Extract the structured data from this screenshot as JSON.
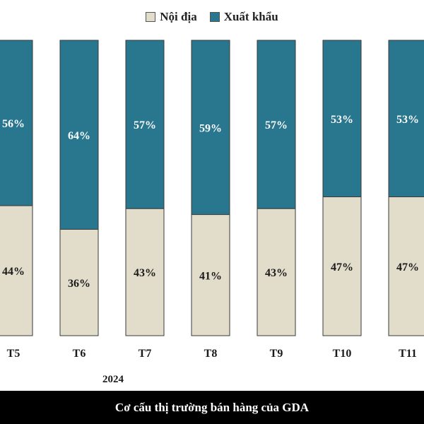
{
  "legend": {
    "domestic_label": "Nội địa",
    "export_label": "Xuất khẩu"
  },
  "colors": {
    "domestic": "#e2ddca",
    "export": "#29768f",
    "bar_border": "#3a3a3a",
    "caption_bg": "#000000"
  },
  "chart_data": {
    "type": "bar",
    "stacked": true,
    "categories": [
      "T5",
      "T6",
      "T7",
      "T8",
      "T9",
      "T10",
      "T11"
    ],
    "group_label": "2024",
    "series": [
      {
        "name": "Nội địa",
        "values": [
          44,
          36,
          43,
          41,
          43,
          47,
          47
        ]
      },
      {
        "name": "Xuất khẩu",
        "values": [
          56,
          64,
          57,
          59,
          57,
          53,
          53
        ]
      }
    ],
    "data_labels": {
      "Nội địa": [
        "44%",
        "36%",
        "43%",
        "41%",
        "43%",
        "47%",
        "47%"
      ],
      "Xuất khẩu": [
        "56%",
        "64%",
        "57%",
        "59%",
        "57%",
        "53%",
        "53%"
      ]
    },
    "ylim": [
      0,
      100
    ],
    "grid": false,
    "legend_position": "top"
  },
  "caption": "Cơ cấu thị trường bán hàng của GDA"
}
